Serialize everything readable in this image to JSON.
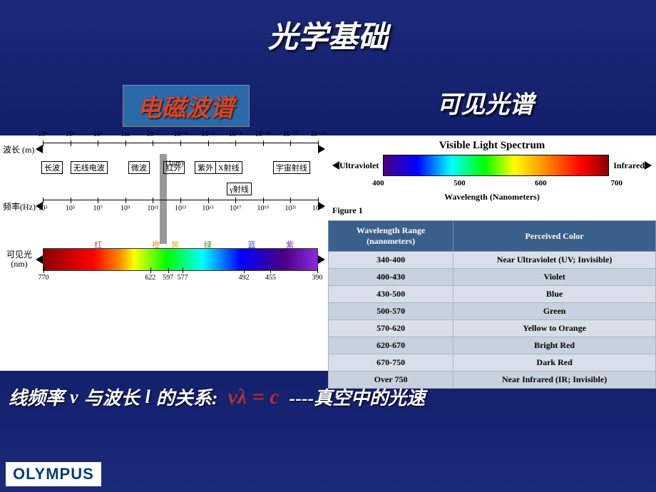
{
  "title": "光学基础",
  "subtitle_left": "电磁波谱",
  "subtitle_right": "可见光谱",
  "em": {
    "wavelength_label": "波长 (m)",
    "frequency_label": "频率(Hz)",
    "visible_label": "可见光\n(nm)",
    "wavelength_exps": [
      "6",
      "4",
      "2",
      "1m",
      "-2",
      "-4",
      "-6",
      "-8",
      "-10",
      "-12",
      "-14"
    ],
    "wavelength_vals": [
      "10⁶",
      "10⁴",
      "10²",
      "1m",
      "10⁻²",
      "10⁻⁴",
      "10⁻⁶",
      "10⁻⁸",
      "10⁻¹⁰",
      "10⁻¹²",
      "10⁻¹⁴"
    ],
    "micron_note": "(1μm)",
    "bands": [
      {
        "label": "长波",
        "left_pct": 2,
        "width_pct": 8
      },
      {
        "label": "无线电波",
        "left_pct": 12,
        "width_pct": 18
      },
      {
        "label": "微波",
        "left_pct": 32,
        "width_pct": 10
      },
      {
        "label": "红外",
        "left_pct": 44,
        "width_pct": 8
      },
      {
        "label": "紫外",
        "left_pct": 55,
        "width_pct": 6
      },
      {
        "label": "X射线",
        "left_pct": 62,
        "width_pct": 10
      },
      {
        "label": "宇宙射线",
        "left_pct": 82,
        "width_pct": 14
      },
      {
        "label": "γ射线",
        "left_pct": 66,
        "width_pct": 10,
        "row": 2
      }
    ],
    "freq_vals": [
      "10³",
      "10⁵",
      "10⁷",
      "10⁹",
      "10¹¹",
      "10¹³",
      "10¹⁵",
      "10¹⁷",
      "10¹⁹",
      "10²¹",
      "10²³"
    ],
    "visible_nm": [
      "770",
      "622",
      "597",
      "577",
      "492",
      "455",
      "390"
    ],
    "visible_nm_pct": [
      0,
      39,
      45.5,
      50.8,
      73.2,
      82.9,
      100
    ],
    "visible_colors_top": [
      "红",
      "橙",
      "黄",
      "绿",
      "蓝",
      "紫"
    ],
    "visible_colors_top_pct": [
      20,
      41,
      48,
      60,
      76,
      90
    ],
    "visible_colors_hex": [
      "#ff3030",
      "#ff9030",
      "#e0c000",
      "#20a020",
      "#3050ff",
      "#8030c0"
    ]
  },
  "vls": {
    "title": "Visible Light Spectrum",
    "left_label": "Ultraviolet",
    "right_label": "Infrared",
    "scale": [
      "400",
      "500",
      "600",
      "700"
    ],
    "scale_pct": [
      8,
      38,
      68,
      96
    ],
    "axis_label": "Wavelength (Nanometers)",
    "figure": "Figure 1"
  },
  "table": {
    "headers": [
      "Wavelength Range\n(nanometers)",
      "Perceived Color"
    ],
    "rows": [
      [
        "340-400",
        "Near Ultraviolet (UV; Invisible)"
      ],
      [
        "400-430",
        "Violet"
      ],
      [
        "430-500",
        "Blue"
      ],
      [
        "500-570",
        "Green"
      ],
      [
        "570-620",
        "Yellow to Orange"
      ],
      [
        "620-670",
        "Bright Red"
      ],
      [
        "670-750",
        "Dark Red"
      ],
      [
        "Over 750",
        "Near Infrared (IR; Invisible)"
      ]
    ]
  },
  "equation": {
    "prefix": "线频率",
    "v": "ν",
    "mid": "与波长",
    "l": "l",
    "suffix1": "的关系:",
    "formula": "νλ = c",
    "suffix2": "----真空中的光速"
  },
  "logo": "OLYMPUS"
}
